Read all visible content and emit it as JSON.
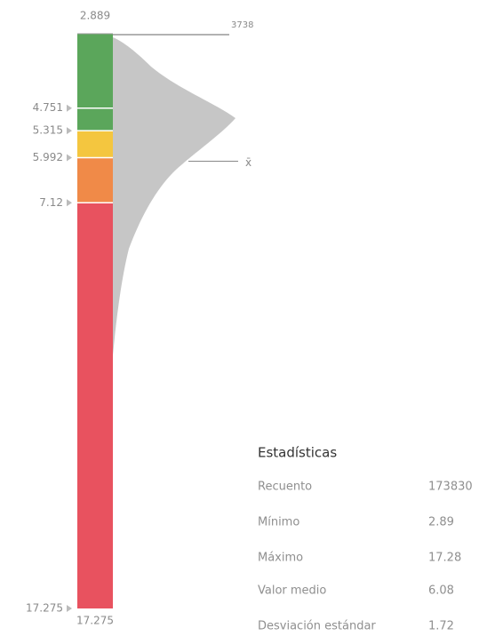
{
  "ramp": {
    "min": 2.889,
    "max": 17.275,
    "classes": [
      {
        "upper": 4.751,
        "color": "#5ba65b"
      },
      {
        "upper": 5.315,
        "color": "#5ba65b"
      },
      {
        "upper": 5.992,
        "color": "#f4c63f"
      },
      {
        "upper": 7.12,
        "color": "#f08a48"
      },
      {
        "upper": 17.275,
        "color": "#e8525f"
      }
    ]
  },
  "histogram": {
    "max_count": 3738,
    "mean_symbol": "x̄"
  },
  "stats": {
    "title": "Estadísticas",
    "rows": [
      {
        "label": "Recuento",
        "value": 173830
      },
      {
        "label": "Mínimo",
        "value": 2.89
      },
      {
        "label": "Máximo",
        "value": 17.28
      },
      {
        "label": "Valor medio",
        "value": 6.08
      },
      {
        "label": "Desviación estándar",
        "value": 1.72
      }
    ]
  }
}
